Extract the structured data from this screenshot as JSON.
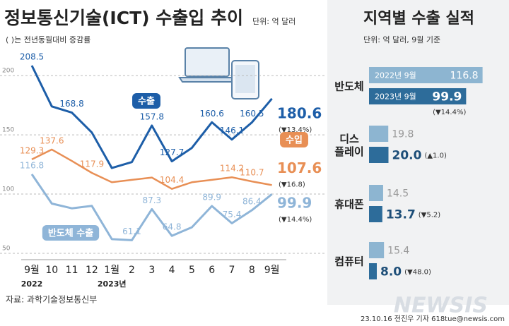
{
  "chart_data": [
    {
      "type": "line",
      "title": "정보통신기술(ICT) 수출입 추이",
      "unit": "단위: 억 달러",
      "note": "( )는 전년동월대비 증감률",
      "source": "자료: 과학기술정보통신부",
      "categories": [
        "9월",
        "10",
        "11",
        "12",
        "1월",
        "2",
        "3",
        "4",
        "5",
        "6",
        "7",
        "8",
        "9월"
      ],
      "years": [
        "2022",
        "2023년"
      ],
      "ylim": [
        50,
        215
      ],
      "yticks": [
        50,
        100,
        150,
        200
      ],
      "grid": true,
      "series": [
        {
          "name": "수출",
          "color": "#1d5ea8",
          "values": [
            208.5,
            174,
            168.8,
            152,
            122,
            127,
            157.8,
            127.7,
            139,
            160.6,
            146.1,
            160.5,
            180.6
          ],
          "value_labels": [
            "208.5",
            null,
            "168.8",
            null,
            null,
            null,
            "157.8",
            "127.7",
            null,
            "160.6",
            "146.1",
            "160.5",
            "180.6"
          ],
          "change": "(▼13.4%)"
        },
        {
          "name": "수입",
          "color": "#e88f55",
          "values": [
            129.3,
            137.6,
            128,
            117.9,
            110,
            112,
            114,
            104.4,
            110,
            112,
            114.2,
            110.7,
            107.6
          ],
          "value_labels": [
            "129.3",
            "137.6",
            null,
            "117.9",
            null,
            null,
            null,
            "104.4",
            null,
            null,
            "114.2",
            "110.7",
            "107.6"
          ],
          "change": "(▼16.8)"
        },
        {
          "name": "반도체 수출",
          "color": "#8fb5d8",
          "values": [
            116.8,
            92,
            88,
            90,
            62,
            61.1,
            87.3,
            64.8,
            72,
            89.9,
            75.4,
            86.4,
            99.9
          ],
          "value_labels": [
            "116.8",
            null,
            null,
            null,
            null,
            "61.1",
            "87.3",
            "64.8",
            null,
            "89.9",
            "75.4",
            "86.4",
            "99.9"
          ],
          "change": "(▼14.4%)"
        }
      ]
    },
    {
      "type": "hbar",
      "title": "지역별 수출 실적",
      "subtitle": "단위: 억 달러, 9월 기준",
      "categories": [
        "반도체",
        "디스\n플레이",
        "휴대폰",
        "컴퓨터"
      ],
      "xlim": [
        0,
        120
      ],
      "series": [
        {
          "name": "2022년 9월",
          "color": "#8db5d1",
          "values": [
            116.8,
            19.8,
            14.5,
            15.4
          ]
        },
        {
          "name": "2023년 9월",
          "color": "#2d6c9a",
          "values": [
            99.9,
            20,
            13.7,
            8
          ],
          "value_labels": [
            "99.9",
            "20.0",
            "13.7",
            "8.0"
          ]
        }
      ],
      "changes": [
        "(▼14.4%)",
        "(▲1.0)",
        "(▼5.2)",
        "(▼48.0)"
      ]
    }
  ],
  "footer": {
    "credit": "23.10.16 전진우 기자 618tue@newsis.com",
    "watermark": "NEWSIS"
  }
}
